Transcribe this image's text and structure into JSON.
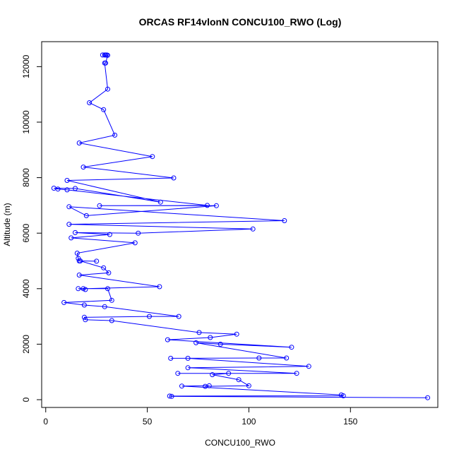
{
  "chart_data": {
    "type": "line",
    "title": "ORCAS RF14vlonN CONCU100_RWO (Log)",
    "xlabel": "CONCU100_RWO",
    "ylabel": "Altitude (m)",
    "xlim": [
      -2,
      193
    ],
    "ylim": [
      -280,
      12900
    ],
    "xticks": [
      0,
      50,
      100,
      150
    ],
    "yticks": [
      0,
      2000,
      4000,
      6000,
      8000,
      10000,
      12000
    ],
    "grid": false,
    "legend": "none",
    "series": [
      {
        "color": "#0000ff",
        "marker": "open-circle",
        "points": [
          [
            29.5,
            12420
          ],
          [
            29.0,
            12420
          ],
          [
            30.0,
            12420
          ],
          [
            28.0,
            12420
          ],
          [
            30.5,
            12410
          ],
          [
            29.5,
            12130
          ],
          [
            29.0,
            12130
          ],
          [
            30.5,
            11190
          ],
          [
            21.5,
            10700
          ],
          [
            28.5,
            10450
          ],
          [
            34.0,
            9530
          ],
          [
            16.5,
            9250
          ],
          [
            52.5,
            8760
          ],
          [
            18.5,
            8380
          ],
          [
            63.0,
            7990
          ],
          [
            10.5,
            7900
          ],
          [
            56.5,
            7120
          ],
          [
            14.5,
            7610
          ],
          [
            4.0,
            7620
          ],
          [
            6.0,
            7590
          ],
          [
            10.5,
            7560
          ],
          [
            79.5,
            7000
          ],
          [
            26.5,
            6990
          ],
          [
            84.0,
            6990
          ],
          [
            20.0,
            6630
          ],
          [
            11.5,
            6950
          ],
          [
            117.5,
            6450
          ],
          [
            11.5,
            6320
          ],
          [
            102.0,
            6150
          ],
          [
            45.5,
            6000
          ],
          [
            14.5,
            6020
          ],
          [
            31.5,
            5950
          ],
          [
            12.5,
            5830
          ],
          [
            44.0,
            5650
          ],
          [
            15.5,
            5280
          ],
          [
            16.0,
            5090
          ],
          [
            16.5,
            5000
          ],
          [
            25.0,
            4990
          ],
          [
            17.0,
            5000
          ],
          [
            28.5,
            4750
          ],
          [
            31.0,
            4570
          ],
          [
            16.5,
            4490
          ],
          [
            56.0,
            4070
          ],
          [
            18.5,
            4000
          ],
          [
            19.5,
            3970
          ],
          [
            16.0,
            4000
          ],
          [
            30.5,
            4000
          ],
          [
            32.5,
            3580
          ],
          [
            9.0,
            3500
          ],
          [
            19.0,
            3410
          ],
          [
            29.0,
            3350
          ],
          [
            65.5,
            3000
          ],
          [
            51.0,
            3000
          ],
          [
            19.0,
            2970
          ],
          [
            19.5,
            2880
          ],
          [
            32.5,
            2850
          ],
          [
            75.5,
            2420
          ],
          [
            94.0,
            2360
          ],
          [
            81.0,
            2240
          ],
          [
            60.0,
            2160
          ],
          [
            121.0,
            1890
          ],
          [
            86.0,
            2000
          ],
          [
            74.0,
            2050
          ],
          [
            118.5,
            1500
          ],
          [
            105.0,
            1500
          ],
          [
            61.5,
            1490
          ],
          [
            70.0,
            1490
          ],
          [
            129.5,
            1200
          ],
          [
            70.0,
            1150
          ],
          [
            123.5,
            950
          ],
          [
            65.0,
            950
          ],
          [
            90.0,
            950
          ],
          [
            82.0,
            900
          ],
          [
            95.0,
            720
          ],
          [
            100.0,
            500
          ],
          [
            78.5,
            480
          ],
          [
            80.5,
            500
          ],
          [
            67.0,
            490
          ],
          [
            145.5,
            170
          ],
          [
            146.5,
            140
          ],
          [
            61.0,
            130
          ],
          [
            62.0,
            120
          ],
          [
            188.0,
            70
          ]
        ]
      }
    ]
  }
}
